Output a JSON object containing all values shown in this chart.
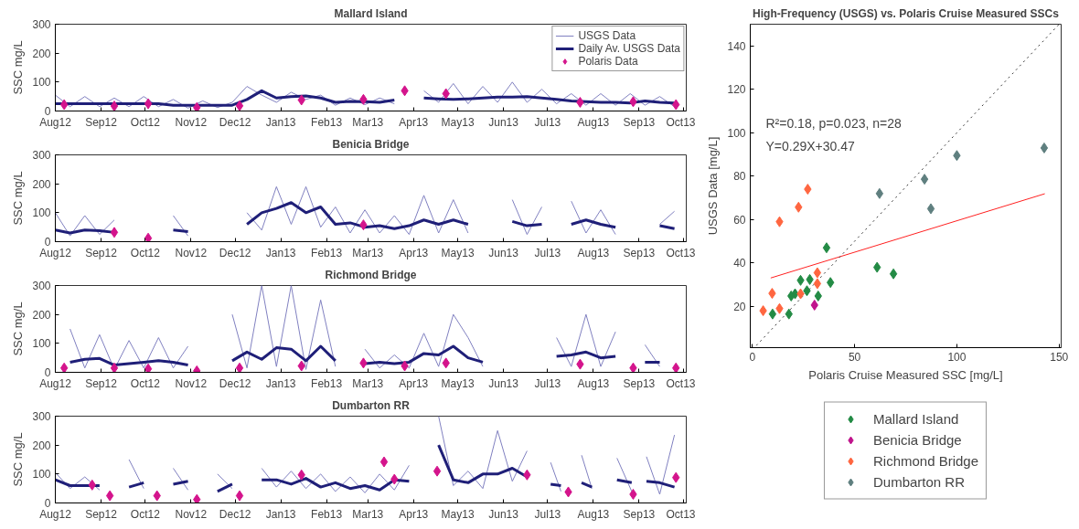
{
  "chart_data": [
    {
      "type": "line",
      "title": "Mallard Island",
      "ylabel": "SSC mg/L",
      "xlim": [
        "2012-08-01",
        "2013-10-03"
      ],
      "ylim": [
        0,
        300
      ],
      "yticks": [
        0,
        100,
        200,
        300
      ],
      "grid": false,
      "legend": "top right",
      "xticks": [
        {
          "value": "2012-08-01",
          "label": "Aug12"
        },
        {
          "value": "2012-09-01",
          "label": "Sep12"
        },
        {
          "value": "2012-10-01",
          "label": "Oct12"
        },
        {
          "value": "2012-11-01",
          "label": "Nov12"
        },
        {
          "value": "2012-12-01",
          "label": "Dec12"
        },
        {
          "value": "2013-01-01",
          "label": "Jan13"
        },
        {
          "value": "2013-02-01",
          "label": "Feb13"
        },
        {
          "value": "2013-03-01",
          "label": "Mar13"
        },
        {
          "value": "2013-04-01",
          "label": "Apr13"
        },
        {
          "value": "2013-05-01",
          "label": "May13"
        },
        {
          "value": "2013-06-01",
          "label": "Jun13"
        },
        {
          "value": "2013-07-01",
          "label": "Jul13"
        },
        {
          "value": "2013-08-01",
          "label": "Aug13"
        },
        {
          "value": "2013-09-01",
          "label": "Sep13"
        },
        {
          "value": "2013-10-01",
          "label": "Oct13"
        }
      ],
      "x": [
        "2012-08-01",
        "2012-08-11",
        "2012-08-21",
        "2012-08-31",
        "2012-09-10",
        "2012-09-20",
        "2012-09-30",
        "2012-10-10",
        "2012-10-20",
        "2012-10-30",
        "2012-11-09",
        "2012-11-19",
        "2012-11-29",
        "2012-12-09",
        "2012-12-19",
        "2012-12-29",
        "2013-01-08",
        "2013-01-18",
        "2013-01-28",
        "2013-02-07",
        "2013-02-17",
        "2013-02-27",
        "2013-03-09",
        "2013-03-19",
        "2013-03-29",
        "2013-04-08",
        "2013-04-18",
        "2013-04-28",
        "2013-05-08",
        "2013-05-18",
        "2013-05-28",
        "2013-06-07",
        "2013-06-17",
        "2013-06-27",
        "2013-07-07",
        "2013-07-17",
        "2013-07-27",
        "2013-08-06",
        "2013-08-16",
        "2013-08-26",
        "2013-09-05",
        "2013-09-15",
        "2013-09-25"
      ],
      "series": [
        {
          "name": "USGS Data",
          "type": "line",
          "color": "#8080c0",
          "values": [
            55,
            15,
            50,
            15,
            45,
            15,
            50,
            15,
            40,
            10,
            35,
            12,
            30,
            85,
            55,
            30,
            65,
            40,
            55,
            20,
            45,
            22,
            45,
            25,
            null,
            70,
            30,
            95,
            25,
            85,
            30,
            100,
            30,
            75,
            25,
            60,
            20,
            60,
            20,
            60,
            20,
            50,
            15
          ]
        },
        {
          "name": "Daily Av. USGS Data",
          "type": "line",
          "color": "#1f1f78",
          "values": [
            25,
            25,
            25,
            25,
            25,
            25,
            25,
            25,
            20,
            20,
            20,
            20,
            20,
            40,
            70,
            45,
            50,
            52,
            45,
            30,
            33,
            32,
            30,
            38,
            null,
            45,
            42,
            40,
            42,
            45,
            48,
            48,
            50,
            45,
            40,
            35,
            32,
            30,
            30,
            28,
            35,
            30,
            28
          ]
        },
        {
          "name": "Polaris Data",
          "type": "scatter",
          "marker": "diamond",
          "color": "#d4148c",
          "x": [
            "2012-08-07",
            "2012-09-10",
            "2012-10-03",
            "2012-11-05",
            "2012-12-04",
            "2013-01-15",
            "2013-02-26",
            "2013-03-26",
            "2013-04-23",
            "2013-07-23",
            "2013-08-28",
            "2013-09-26"
          ],
          "values": [
            22,
            17,
            25,
            12,
            18,
            38,
            40,
            70,
            60,
            30,
            32,
            22
          ]
        }
      ]
    },
    {
      "type": "line",
      "title": "Benicia Bridge",
      "ylabel": "SSC mg/L",
      "xlim": [
        "2012-08-01",
        "2013-10-03"
      ],
      "ylim": [
        0,
        300
      ],
      "yticks": [
        0,
        100,
        200,
        300
      ],
      "grid": false,
      "xticks": [
        {
          "value": "2012-08-01",
          "label": "Aug12"
        },
        {
          "value": "2012-09-01",
          "label": "Sep12"
        },
        {
          "value": "2012-10-01",
          "label": "Oct12"
        },
        {
          "value": "2012-11-01",
          "label": "Nov12"
        },
        {
          "value": "2012-12-01",
          "label": "Dec12"
        },
        {
          "value": "2013-01-01",
          "label": "Jan13"
        },
        {
          "value": "2013-02-01",
          "label": "Feb13"
        },
        {
          "value": "2013-03-01",
          "label": "Mar13"
        },
        {
          "value": "2013-04-01",
          "label": "Apr13"
        },
        {
          "value": "2013-05-01",
          "label": "May13"
        },
        {
          "value": "2013-06-01",
          "label": "Jun13"
        },
        {
          "value": "2013-07-01",
          "label": "Jul13"
        },
        {
          "value": "2013-08-01",
          "label": "Aug13"
        },
        {
          "value": "2013-09-01",
          "label": "Sep13"
        },
        {
          "value": "2013-10-01",
          "label": "Oct13"
        }
      ],
      "x": [
        "2012-08-01",
        "2012-08-11",
        "2012-08-21",
        "2012-08-31",
        "2012-09-10",
        "2012-09-20",
        "2012-09-30",
        "2012-10-10",
        "2012-10-20",
        "2012-10-30",
        "2012-11-09",
        "2012-11-19",
        "2012-11-29",
        "2012-12-09",
        "2012-12-19",
        "2012-12-29",
        "2013-01-08",
        "2013-01-18",
        "2013-01-28",
        "2013-02-07",
        "2013-02-17",
        "2013-02-27",
        "2013-03-09",
        "2013-03-19",
        "2013-03-29",
        "2013-04-08",
        "2013-04-18",
        "2013-04-28",
        "2013-05-08",
        "2013-05-18",
        "2013-05-28",
        "2013-06-07",
        "2013-06-17",
        "2013-06-27",
        "2013-07-07",
        "2013-07-17",
        "2013-07-27",
        "2013-08-06",
        "2013-08-16",
        "2013-08-26",
        "2013-09-05",
        "2013-09-15",
        "2013-09-25"
      ],
      "series": [
        {
          "type": "line",
          "color": "#8080c0",
          "values": [
            100,
            20,
            90,
            25,
            75,
            null,
            null,
            null,
            90,
            20,
            null,
            null,
            null,
            100,
            40,
            190,
            60,
            190,
            50,
            120,
            30,
            110,
            30,
            90,
            25,
            160,
            30,
            145,
            30,
            null,
            null,
            145,
            25,
            120,
            null,
            140,
            30,
            110,
            25,
            null,
            null,
            60,
            105
          ]
        },
        {
          "type": "line",
          "color": "#1f1f78",
          "values": [
            40,
            30,
            40,
            38,
            32,
            null,
            null,
            null,
            40,
            35,
            null,
            null,
            null,
            60,
            100,
            115,
            135,
            100,
            120,
            60,
            65,
            50,
            55,
            45,
            55,
            75,
            60,
            75,
            60,
            null,
            null,
            70,
            55,
            60,
            null,
            60,
            75,
            60,
            50,
            null,
            null,
            55,
            45
          ]
        },
        {
          "type": "scatter",
          "marker": "diamond",
          "color": "#d4148c",
          "x": [
            "2012-09-10",
            "2012-10-03",
            "2013-02-26"
          ],
          "values": [
            32,
            12,
            58
          ]
        }
      ]
    },
    {
      "type": "line",
      "title": "Richmond Bridge",
      "ylabel": "SSC mg/L",
      "xlim": [
        "2012-08-01",
        "2013-10-03"
      ],
      "ylim": [
        0,
        300
      ],
      "yticks": [
        0,
        100,
        200,
        300
      ],
      "grid": false,
      "xticks": [
        {
          "value": "2012-08-01",
          "label": "Aug12"
        },
        {
          "value": "2012-09-01",
          "label": "Sep12"
        },
        {
          "value": "2012-10-01",
          "label": "Oct12"
        },
        {
          "value": "2012-11-01",
          "label": "Nov12"
        },
        {
          "value": "2012-12-01",
          "label": "Dec12"
        },
        {
          "value": "2013-01-01",
          "label": "Jan13"
        },
        {
          "value": "2013-02-01",
          "label": "Feb13"
        },
        {
          "value": "2013-03-01",
          "label": "Mar13"
        },
        {
          "value": "2013-04-01",
          "label": "Apr13"
        },
        {
          "value": "2013-05-01",
          "label": "May13"
        },
        {
          "value": "2013-06-01",
          "label": "Jun13"
        },
        {
          "value": "2013-07-01",
          "label": "Jul13"
        },
        {
          "value": "2013-08-01",
          "label": "Aug13"
        },
        {
          "value": "2013-09-01",
          "label": "Sep13"
        },
        {
          "value": "2013-10-01",
          "label": "Oct13"
        }
      ],
      "x": [
        "2012-08-11",
        "2012-08-21",
        "2012-08-31",
        "2012-09-10",
        "2012-09-20",
        "2012-09-30",
        "2012-10-10",
        "2012-10-20",
        "2012-10-30",
        "2012-11-09",
        "2012-11-29",
        "2012-12-09",
        "2012-12-19",
        "2012-12-29",
        "2013-01-08",
        "2013-01-18",
        "2013-01-28",
        "2013-02-07",
        "2013-02-17",
        "2013-02-27",
        "2013-03-09",
        "2013-03-19",
        "2013-03-29",
        "2013-04-08",
        "2013-04-18",
        "2013-04-28",
        "2013-05-08",
        "2013-05-18",
        "2013-05-28",
        "2013-07-07",
        "2013-07-17",
        "2013-07-27",
        "2013-08-06",
        "2013-08-16",
        "2013-08-26",
        "2013-09-05",
        "2013-09-15"
      ],
      "series": [
        {
          "type": "line",
          "color": "#8080c0",
          "values": [
            150,
            15,
            130,
            10,
            110,
            15,
            120,
            15,
            90,
            null,
            200,
            15,
            300,
            20,
            300,
            10,
            250,
            20,
            null,
            80,
            15,
            60,
            15,
            135,
            20,
            200,
            120,
            20,
            null,
            120,
            20,
            200,
            20,
            140,
            null,
            95,
            20
          ]
        },
        {
          "type": "line",
          "color": "#1f1f78",
          "values": [
            35,
            45,
            48,
            25,
            30,
            35,
            40,
            35,
            25,
            null,
            40,
            70,
            45,
            85,
            80,
            40,
            90,
            40,
            null,
            30,
            35,
            30,
            35,
            65,
            60,
            90,
            50,
            35,
            null,
            55,
            60,
            70,
            50,
            55,
            null,
            35,
            35
          ]
        },
        {
          "type": "scatter",
          "marker": "diamond",
          "color": "#d4148c",
          "x": [
            "2012-08-07",
            "2012-09-10",
            "2012-10-03",
            "2012-11-05",
            "2012-12-04",
            "2013-01-15",
            "2013-02-26",
            "2013-03-26",
            "2013-04-23",
            "2013-07-23",
            "2013-08-28",
            "2013-09-26"
          ],
          "values": [
            15,
            15,
            12,
            5,
            15,
            22,
            32,
            22,
            32,
            28,
            15,
            15
          ]
        }
      ]
    },
    {
      "type": "line",
      "title": "Dumbarton RR",
      "ylabel": "SSC mg/L",
      "xlim": [
        "2012-08-01",
        "2013-10-03"
      ],
      "ylim": [
        0,
        300
      ],
      "yticks": [
        0,
        100,
        200,
        300
      ],
      "grid": false,
      "xticks": [
        {
          "value": "2012-08-01",
          "label": "Aug12"
        },
        {
          "value": "2012-09-01",
          "label": "Sep12"
        },
        {
          "value": "2012-10-01",
          "label": "Oct12"
        },
        {
          "value": "2012-11-01",
          "label": "Nov12"
        },
        {
          "value": "2012-12-01",
          "label": "Dec12"
        },
        {
          "value": "2013-01-01",
          "label": "Jan13"
        },
        {
          "value": "2013-02-01",
          "label": "Feb13"
        },
        {
          "value": "2013-03-01",
          "label": "Mar13"
        },
        {
          "value": "2013-04-01",
          "label": "Apr13"
        },
        {
          "value": "2013-05-01",
          "label": "May13"
        },
        {
          "value": "2013-06-01",
          "label": "Jun13"
        },
        {
          "value": "2013-07-01",
          "label": "Jul13"
        },
        {
          "value": "2013-08-01",
          "label": "Aug13"
        },
        {
          "value": "2013-09-01",
          "label": "Sep13"
        },
        {
          "value": "2013-10-01",
          "label": "Oct13"
        }
      ],
      "x": [
        "2012-08-01",
        "2012-08-11",
        "2012-08-21",
        "2012-08-31",
        "2012-09-10",
        "2012-09-20",
        "2012-09-30",
        "2012-10-10",
        "2012-10-20",
        "2012-10-30",
        "2012-11-09",
        "2012-11-19",
        "2012-11-29",
        "2012-12-09",
        "2012-12-19",
        "2012-12-29",
        "2013-01-08",
        "2013-01-18",
        "2013-01-28",
        "2013-02-07",
        "2013-02-17",
        "2013-02-27",
        "2013-03-09",
        "2013-03-19",
        "2013-03-29",
        "2013-04-08",
        "2013-04-18",
        "2013-04-28",
        "2013-05-08",
        "2013-05-18",
        "2013-05-28",
        "2013-06-07",
        "2013-06-17",
        "2013-06-25",
        "2013-07-03",
        "2013-07-10",
        "2013-07-17",
        "2013-07-24",
        "2013-07-31",
        "2013-08-08",
        "2013-08-17",
        "2013-08-27",
        "2013-08-31",
        "2013-09-06",
        "2013-09-15",
        "2013-09-25"
      ],
      "series": [
        {
          "type": "line",
          "color": "#8080c0",
          "values": [
            105,
            50,
            90,
            45,
            null,
            150,
            50,
            null,
            120,
            45,
            null,
            100,
            50,
            null,
            120,
            55,
            110,
            50,
            100,
            40,
            90,
            35,
            100,
            45,
            130,
            null,
            300,
            60,
            110,
            50,
            250,
            75,
            180,
            null,
            140,
            40,
            null,
            165,
            50,
            null,
            155,
            40,
            null,
            160,
            30,
            235
          ]
        },
        {
          "type": "line",
          "color": "#1f1f78",
          "values": [
            80,
            60,
            60,
            60,
            null,
            55,
            70,
            null,
            65,
            75,
            null,
            40,
            65,
            null,
            80,
            80,
            65,
            85,
            55,
            70,
            50,
            60,
            45,
            80,
            75,
            null,
            200,
            80,
            70,
            100,
            100,
            120,
            90,
            null,
            65,
            60,
            null,
            70,
            55,
            null,
            80,
            70,
            null,
            75,
            70,
            55
          ]
        },
        {
          "type": "scatter",
          "marker": "diamond",
          "color": "#d4148c",
          "x": [
            "2012-08-26",
            "2012-09-07",
            "2012-10-09",
            "2012-11-05",
            "2012-12-04",
            "2013-01-15",
            "2013-03-12",
            "2013-03-19",
            "2013-04-17",
            "2013-06-17",
            "2013-07-15",
            "2013-08-28",
            "2013-09-26"
          ],
          "values": [
            62,
            25,
            25,
            12,
            25,
            97,
            142,
            82,
            110,
            97,
            38,
            30,
            88
          ]
        }
      ]
    },
    {
      "type": "scatter",
      "title": "High-Frequency (USGS) vs. Polaris Cruise Measured SSCs",
      "xlabel": "Polaris Cruise Measured SSC [mg/L]",
      "ylabel": "USGS Data [mg/L]",
      "xlim": [
        -1,
        151
      ],
      "ylim": [
        1,
        150
      ],
      "xticks": [
        0,
        50,
        100,
        150
      ],
      "yticks": [
        20,
        40,
        60,
        80,
        100,
        120,
        140
      ],
      "grid": false,
      "legend": "bottom",
      "annotations": [
        "R²=0.18, p=0.023, n=28",
        "Y=0.29X+30.47"
      ],
      "series": [
        {
          "type": "line",
          "color": "#ff2020",
          "x": [
            9,
            143
          ],
          "values": [
            33.1,
            71.9
          ]
        },
        {
          "type": "line",
          "color": "#333333",
          "line_style": "dotted",
          "x": [
            2,
            150
          ],
          "values": [
            2,
            150
          ]
        },
        {
          "name": "Mallard Island",
          "marker": "diamond",
          "color": "#238b45",
          "x": [
            9.9,
            17.9,
            20.9,
            23.6,
            28.1,
            26.7,
            32.2,
            38.2,
            36.3,
            61,
            69,
            19
          ],
          "values": [
            16.5,
            16.5,
            25.8,
            32,
            32.4,
            27.2,
            24.8,
            31,
            47,
            38,
            35,
            24.8
          ]
        },
        {
          "name": "Benicia Bridge",
          "marker": "diamond",
          "color": "#c0148c",
          "x": [
            30.4
          ],
          "values": [
            20.6
          ]
        },
        {
          "name": "Richmond Bridge",
          "marker": "diamond",
          "color": "#ff6640",
          "x": [
            5.3,
            9.7,
            13.3,
            13.3,
            22.6,
            27.1,
            23.6,
            31.8,
            31.8
          ],
          "values": [
            18,
            26,
            19,
            59,
            65.7,
            74,
            25.8,
            35.5,
            30.5
          ]
        },
        {
          "name": "Dumbarton RR",
          "marker": "diamond",
          "color": "#5f7f7f",
          "x": [
            62.2,
            84.2,
            87.3,
            100,
            142.7
          ],
          "values": [
            72,
            78.6,
            65,
            89.5,
            93
          ]
        }
      ]
    }
  ]
}
